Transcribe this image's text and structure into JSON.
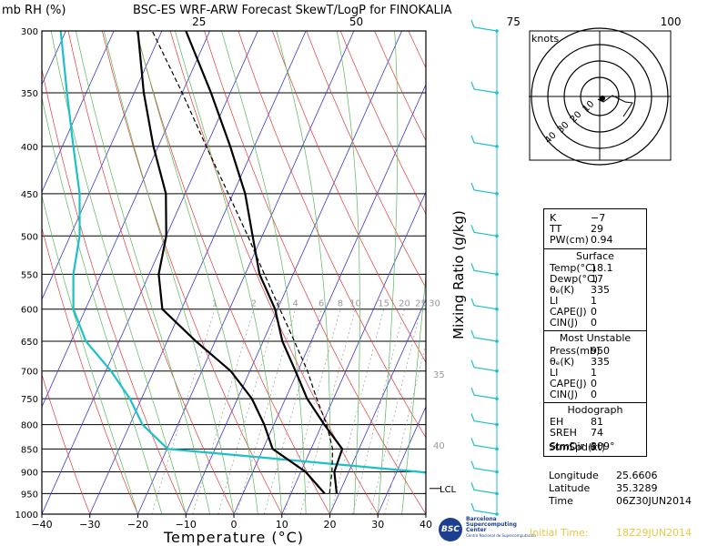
{
  "header": {
    "left_label": "mb RH (%)",
    "title": "BSC-ES WRF-ARW Forecast SkewT/LogP for FINOKALIA"
  },
  "chart_data": {
    "type": "skewt",
    "title": "BSC-ES WRF-ARW Forecast SkewT/LogP for FINOKALIA",
    "xlabel": "Temperature (°C)",
    "ylabel": "mb",
    "xlim": [
      -40,
      40
    ],
    "ylim": [
      1000,
      300
    ],
    "pressure_ticks": [
      300,
      350,
      400,
      450,
      500,
      550,
      600,
      650,
      700,
      750,
      800,
      850,
      900,
      950,
      1000
    ],
    "temp_ticks": [
      -40,
      -30,
      -20,
      -10,
      0,
      10,
      20,
      30,
      40
    ],
    "rh_ticks": [
      25,
      50,
      75,
      100
    ],
    "rh_label": "RH (%)",
    "mixing_ratio_label": "Mixing Ratio (g/kg)",
    "mixing_ratio_values": [
      "1",
      "2",
      "3",
      "4",
      "6",
      "8",
      "10",
      "15",
      "20",
      "25",
      "30"
    ],
    "isotherm_labels": [
      {
        "t": 35,
        "p": 705
      },
      {
        "t": 40,
        "p": 842
      }
    ],
    "lcl": {
      "label": "LCL",
      "p": 938
    },
    "temperature": {
      "p": [
        950,
        900,
        850,
        800,
        750,
        700,
        650,
        600,
        550,
        500,
        450,
        400,
        350,
        300
      ],
      "t": [
        19.5,
        17,
        16.5,
        10.5,
        4.5,
        -0.5,
        -6,
        -10.5,
        -17,
        -22,
        -27.5,
        -35,
        -44,
        -55
      ]
    },
    "dewpoint": {
      "p": [
        950,
        900,
        850,
        800,
        750,
        700,
        650,
        600,
        550,
        500,
        450,
        400,
        350,
        300
      ],
      "t": [
        17,
        11,
        2,
        -2,
        -7,
        -14,
        -24,
        -34,
        -38,
        -40,
        -44,
        -51,
        -58,
        -65
      ]
    },
    "parcel": {
      "p": [
        950,
        900,
        850,
        800,
        750,
        700,
        650,
        600,
        550,
        500,
        450,
        400,
        350,
        300
      ],
      "t": [
        18,
        16.5,
        14.5,
        11,
        6.5,
        2,
        -3.5,
        -9.5,
        -16,
        -23,
        -31,
        -40,
        -50,
        -62
      ]
    },
    "rh_profile": {
      "p": [
        950,
        900,
        850,
        800,
        750,
        700,
        650,
        600,
        550,
        500,
        450,
        400,
        350,
        300
      ],
      "rh": [
        85,
        60,
        20,
        16,
        14,
        11,
        7,
        5,
        5,
        6,
        6,
        5,
        4,
        3
      ]
    },
    "wind_levels": [
      300,
      350,
      400,
      450,
      500,
      550,
      600,
      650,
      700,
      750,
      800,
      850,
      900,
      950,
      1000
    ]
  },
  "hodograph": {
    "units": "knots",
    "rings": [
      "10",
      "20",
      "30",
      "40"
    ]
  },
  "indices": {
    "k_label": "K",
    "k": "−7",
    "tt_label": "TT",
    "tt": "29",
    "pw_label": "PW(cm)",
    "pw": "0.94"
  },
  "surface": {
    "title": "Surface",
    "temp_label": "Temp(°C)",
    "temp": "18.1",
    "dewp_label": "Dewp(°C)",
    "dewp": "17",
    "theta_label": "θₑ(K)",
    "theta": "335",
    "li_label": "LI",
    "li": "1",
    "cape_label": "CAPE(J)",
    "cape": "0",
    "cin_label": "CIN(J)",
    "cin": "0"
  },
  "most_unstable": {
    "title": "Most Unstable",
    "press_label": "Press(mb)",
    "press": "950",
    "theta_label": "θₑ(K)",
    "theta": "335",
    "li_label": "LI",
    "li": "1",
    "cape_label": "CAPE(J)",
    "cape": "0",
    "cin_label": "CIN(J)",
    "cin": "0"
  },
  "hodo_stats": {
    "title": "Hodograph",
    "eh_label": "EH",
    "eh": "81",
    "sreh_label": "SREH",
    "sreh": "74",
    "stmdir_label": "StmDir",
    "stmdir": "309°",
    "stmspd_label": "StmSpd(kt)",
    "stmspd": "6"
  },
  "location": {
    "lon_label": "Longitude",
    "lon": "25.6606",
    "lat_label": "Latitude",
    "lat": "35.3289",
    "time_label": "Time",
    "time": "06Z30JUN2014"
  },
  "footer": {
    "logo_text": "BSC",
    "org_line1": "Barcelona",
    "org_line2": "Supercomputing",
    "org_line3": "Center",
    "org_line4": "Centro Nacional de Supercomputación",
    "init_label": "Initial Time:",
    "init_value": "18Z29JUN2014"
  },
  "colors": {
    "isotherm": "#3a3acc",
    "dry_adiabat": "#e23a3a",
    "moist_adiabat": "#58b858",
    "mixing_ratio": "#9a9a9a",
    "rh": "#1ec0c8",
    "wind": "#1ec0c8",
    "init_time": "#e8c840"
  }
}
